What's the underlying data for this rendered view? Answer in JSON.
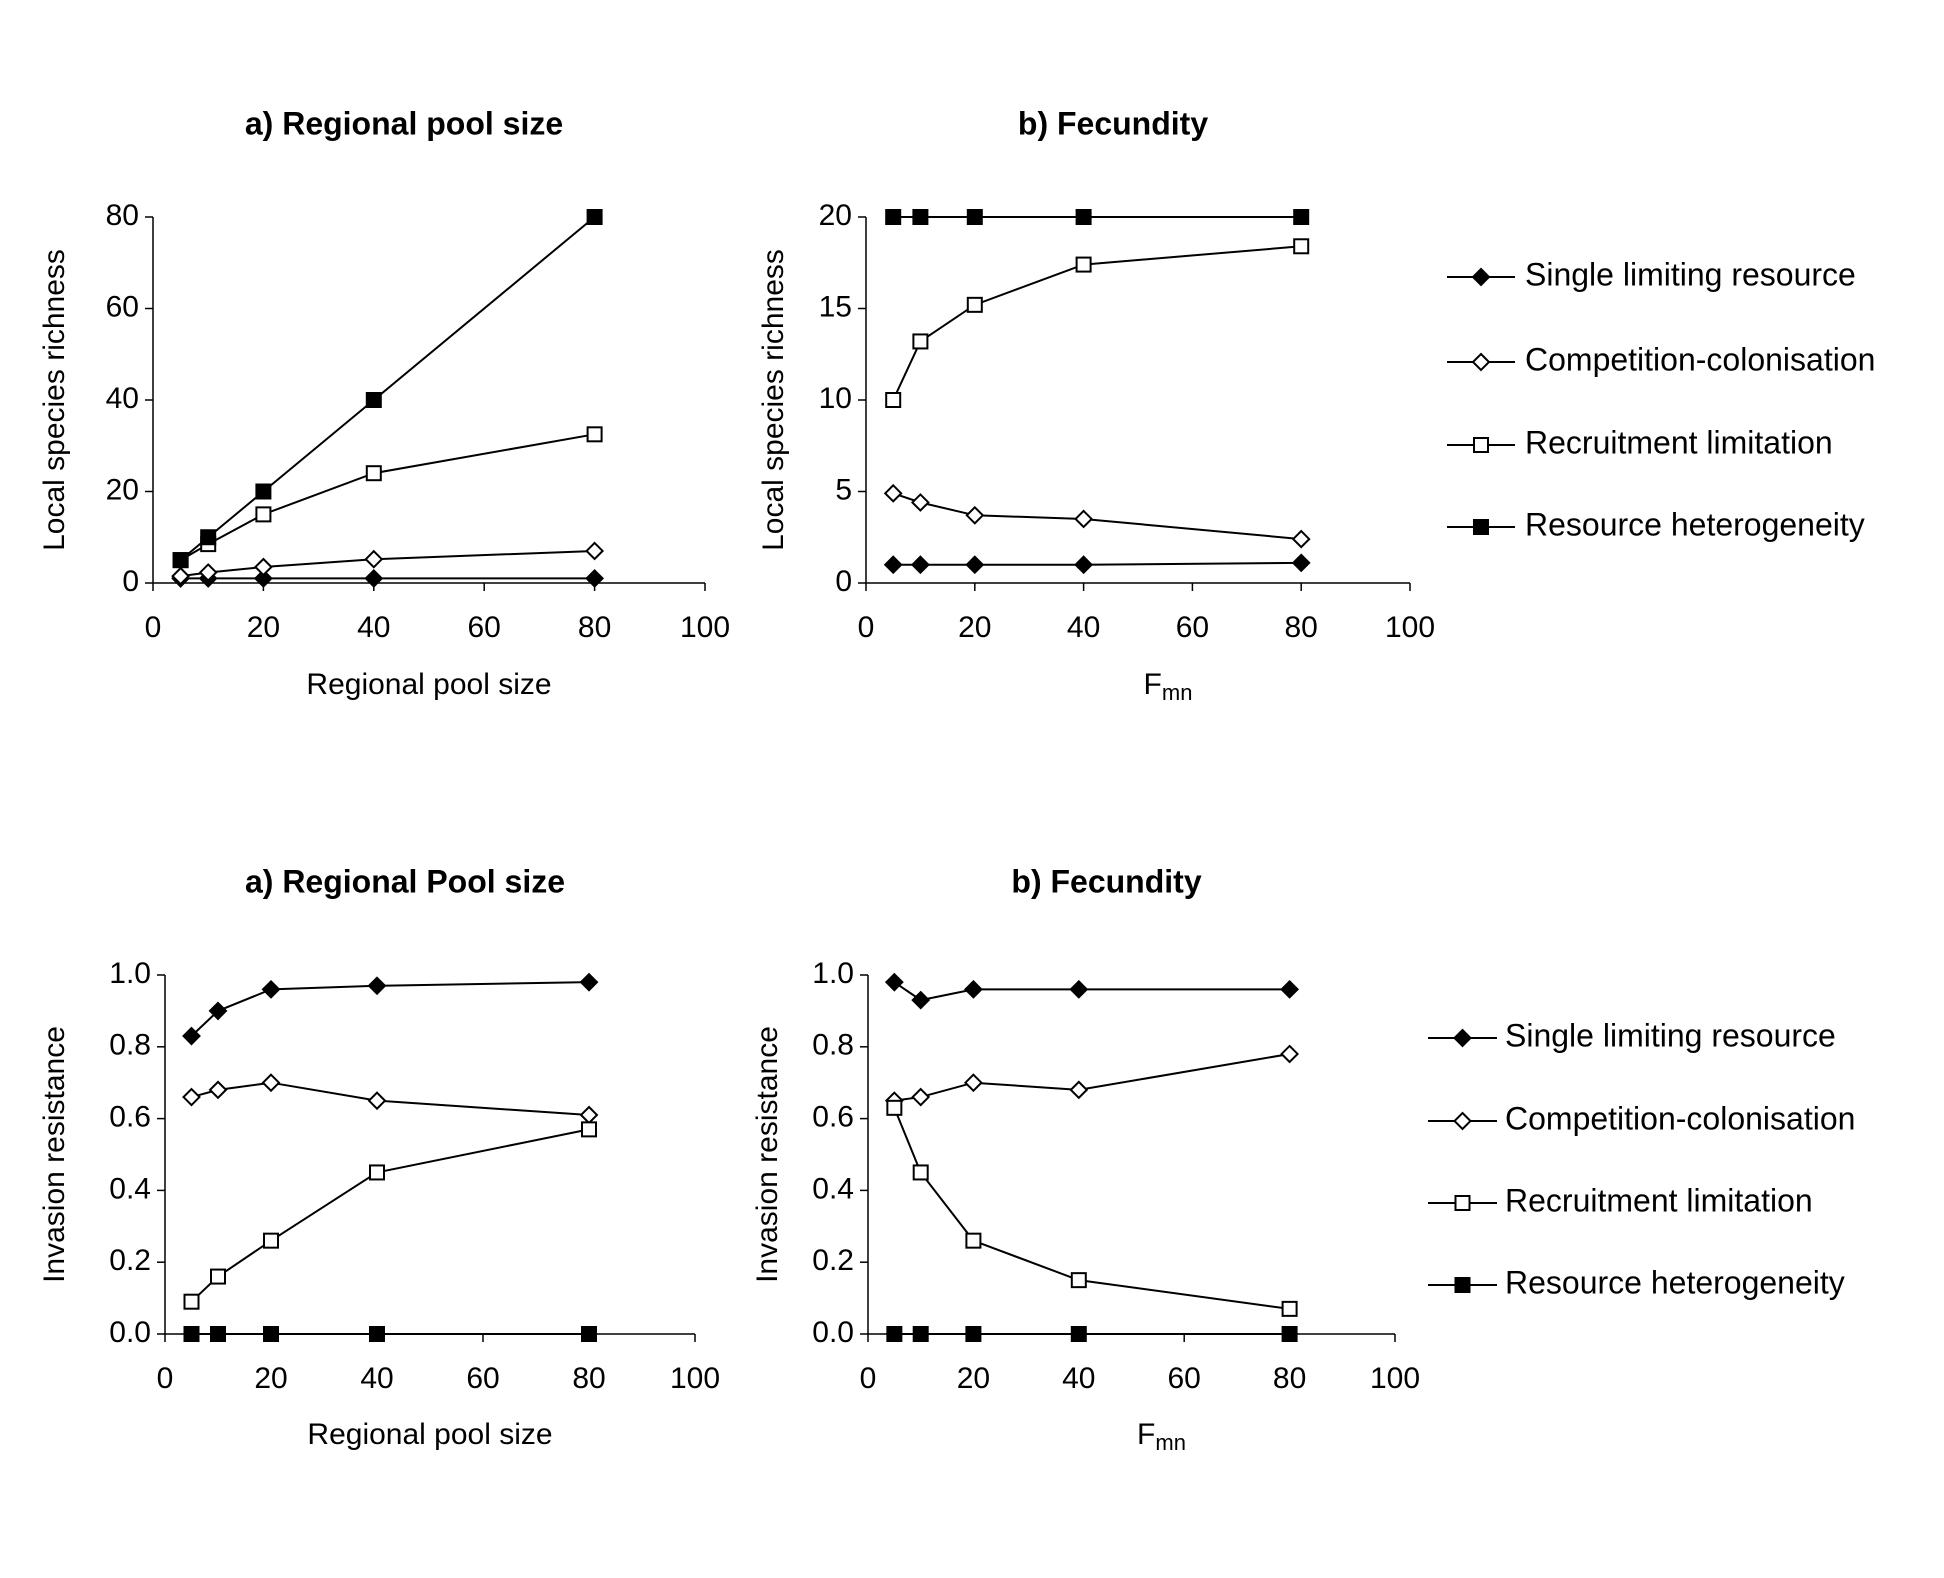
{
  "chart_data": [
    {
      "type": "line",
      "title": "a) Regional pool size",
      "xlabel": "Regional pool size",
      "ylabel": "Local species richness",
      "x": [
        5,
        10,
        20,
        40,
        80
      ],
      "xlim": [
        0,
        100
      ],
      "xticks": [
        0,
        20,
        40,
        60,
        80,
        100
      ],
      "ylim": [
        0,
        80
      ],
      "yticks": [
        0,
        20,
        40,
        60,
        80
      ],
      "series": [
        {
          "marker": "diamond",
          "filled": true,
          "color": "#000000",
          "values": [
            1,
            1,
            1,
            1,
            1
          ]
        },
        {
          "marker": "diamond",
          "filled": false,
          "color": "#000000",
          "values": [
            1.5,
            2.3,
            3.5,
            5.2,
            7
          ]
        },
        {
          "marker": "square",
          "filled": false,
          "color": "#000000",
          "values": [
            5,
            8.5,
            15,
            24,
            32.5
          ]
        },
        {
          "marker": "square",
          "filled": true,
          "color": "#000000",
          "values": [
            5,
            10,
            20,
            40,
            80
          ]
        }
      ]
    },
    {
      "type": "line",
      "title": "b) Fecundity",
      "xlabel": "F",
      "xlabel_subscript": "mn",
      "ylabel": "Local species richness",
      "x": [
        5,
        10,
        20,
        40,
        80
      ],
      "xlim": [
        0,
        100
      ],
      "xticks": [
        0,
        20,
        40,
        60,
        80,
        100
      ],
      "ylim": [
        0,
        20
      ],
      "yticks": [
        0,
        5,
        10,
        15,
        20
      ],
      "series": [
        {
          "name": "Single limiting resource",
          "marker": "diamond",
          "filled": true,
          "color": "#000000",
          "values": [
            1,
            1,
            1,
            1,
            1.1
          ]
        },
        {
          "name": "Competition-colonisation",
          "marker": "diamond",
          "filled": false,
          "color": "#000000",
          "values": [
            4.9,
            4.4,
            3.7,
            3.5,
            2.4
          ]
        },
        {
          "name": "Recruitment limitation",
          "marker": "square",
          "filled": false,
          "color": "#000000",
          "values": [
            10,
            13.2,
            15.2,
            17.4,
            18.4
          ]
        },
        {
          "name": "Resource heterogeneity",
          "marker": "square",
          "filled": true,
          "color": "#000000",
          "values": [
            20,
            20,
            20,
            20,
            20
          ]
        }
      ]
    },
    {
      "type": "line",
      "title": "a) Regional Pool size",
      "xlabel": "Regional pool size",
      "ylabel": "Invasion resistance",
      "x": [
        5,
        10,
        20,
        40,
        80
      ],
      "xlim": [
        0,
        100
      ],
      "xticks": [
        0,
        20,
        40,
        60,
        80,
        100
      ],
      "ylim": [
        0,
        1
      ],
      "yticks": [
        {
          "value": 0,
          "label": "0.0"
        },
        0.2,
        0.4,
        0.6,
        0.8,
        {
          "value": 1,
          "label": "1.0"
        }
      ],
      "series": [
        {
          "marker": "diamond",
          "filled": true,
          "color": "#000000",
          "values": [
            0.83,
            0.9,
            0.96,
            0.97,
            0.98
          ]
        },
        {
          "marker": "diamond",
          "filled": false,
          "color": "#000000",
          "values": [
            0.66,
            0.68,
            0.7,
            0.65,
            0.61
          ]
        },
        {
          "marker": "square",
          "filled": false,
          "color": "#000000",
          "values": [
            0.09,
            0.16,
            0.26,
            0.45,
            0.57
          ]
        },
        {
          "marker": "square",
          "filled": true,
          "color": "#000000",
          "values": [
            0,
            0,
            0,
            0,
            0
          ]
        }
      ]
    },
    {
      "type": "line",
      "title": "b) Fecundity",
      "xlabel": "F",
      "xlabel_subscript": "mn",
      "ylabel": "Invasion resistance",
      "x": [
        5,
        10,
        20,
        40,
        80
      ],
      "xlim": [
        0,
        100
      ],
      "xticks": [
        0,
        20,
        40,
        60,
        80,
        100
      ],
      "ylim": [
        0,
        1
      ],
      "yticks": [
        {
          "value": 0,
          "label": "0.0"
        },
        0.2,
        0.4,
        0.6,
        0.8,
        {
          "value": 1,
          "label": "1.0"
        }
      ],
      "series": [
        {
          "name": "Single limiting resource",
          "marker": "diamond",
          "filled": true,
          "color": "#000000",
          "values": [
            0.98,
            0.93,
            0.96,
            0.96,
            0.96
          ]
        },
        {
          "name": "Competition-colonisation",
          "marker": "diamond",
          "filled": false,
          "color": "#000000",
          "values": [
            0.65,
            0.66,
            0.7,
            0.68,
            0.78
          ]
        },
        {
          "name": "Recruitment limitation",
          "marker": "square",
          "filled": false,
          "color": "#000000",
          "values": [
            0.63,
            0.45,
            0.26,
            0.15,
            0.07
          ]
        },
        {
          "name": "Resource heterogeneity",
          "marker": "square",
          "filled": true,
          "color": "#000000",
          "values": [
            0,
            0,
            0,
            0,
            0
          ]
        }
      ]
    }
  ]
}
